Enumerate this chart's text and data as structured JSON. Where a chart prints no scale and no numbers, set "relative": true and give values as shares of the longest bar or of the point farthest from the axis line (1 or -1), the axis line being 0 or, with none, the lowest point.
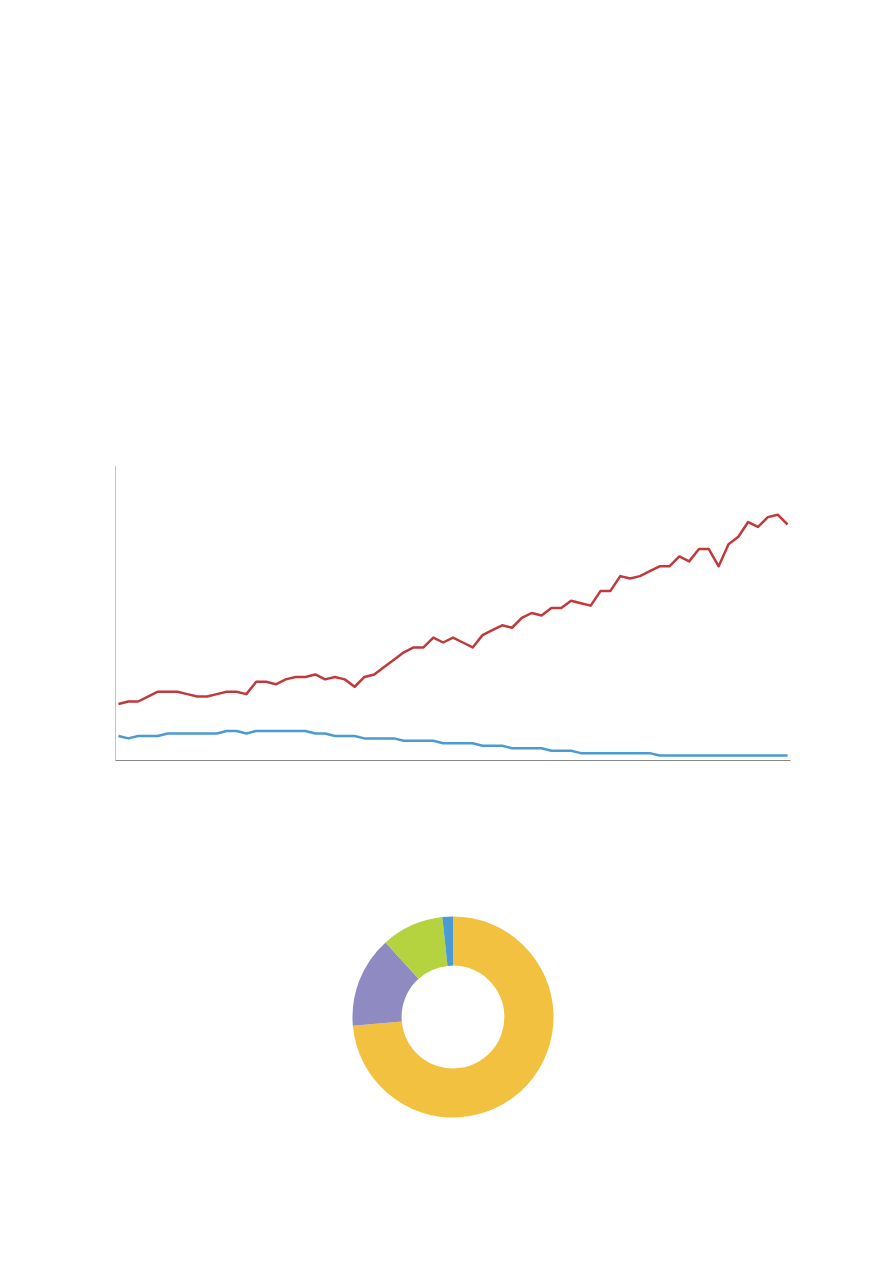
{
  "chart_data": [
    {
      "type": "line",
      "relative": true,
      "categories": [
        null,
        null,
        null,
        null,
        null,
        null,
        null,
        null,
        null,
        null,
        null,
        null,
        null,
        null,
        null,
        null,
        null,
        null,
        null,
        null,
        null,
        null,
        null,
        null,
        null,
        null,
        null,
        null,
        null,
        null,
        null,
        null,
        null,
        null,
        null,
        null,
        null,
        null,
        null,
        null,
        null,
        null,
        null,
        null,
        null,
        null,
        null,
        null,
        null,
        null,
        null,
        null,
        null,
        null,
        null,
        null,
        null,
        null,
        null,
        null,
        null,
        null,
        null,
        null,
        null,
        null,
        null,
        null,
        null
      ],
      "series": [
        {
          "color": "#4a9ad4",
          "values": [
            0.1,
            0.09,
            0.1,
            0.1,
            0.1,
            0.11,
            0.11,
            0.11,
            0.11,
            0.11,
            0.11,
            0.12,
            0.12,
            0.11,
            0.12,
            0.12,
            0.12,
            0.12,
            0.12,
            0.12,
            0.11,
            0.11,
            0.1,
            0.1,
            0.1,
            0.09,
            0.09,
            0.09,
            0.09,
            0.08,
            0.08,
            0.08,
            0.08,
            0.07,
            0.07,
            0.07,
            0.07,
            0.06,
            0.06,
            0.06,
            0.05,
            0.05,
            0.05,
            0.05,
            0.04,
            0.04,
            0.04,
            0.03,
            0.03,
            0.03,
            0.03,
            0.03,
            0.03,
            0.03,
            0.03,
            0.02,
            0.02,
            0.02,
            0.02,
            0.02,
            0.02,
            0.02,
            0.02,
            0.02,
            0.02,
            0.02,
            0.02,
            0.02,
            0.02
          ]
        },
        {
          "color": "#c0393b",
          "values": [
            0.23,
            0.24,
            0.24,
            0.26,
            0.28,
            0.28,
            0.28,
            0.27,
            0.26,
            0.26,
            0.27,
            0.28,
            0.28,
            0.27,
            0.32,
            0.32,
            0.31,
            0.33,
            0.34,
            0.34,
            0.35,
            0.33,
            0.34,
            0.33,
            0.3,
            0.34,
            0.35,
            0.38,
            0.41,
            0.44,
            0.46,
            0.46,
            0.5,
            0.48,
            0.5,
            0.48,
            0.46,
            0.51,
            0.53,
            0.55,
            0.54,
            0.58,
            0.6,
            0.59,
            0.62,
            0.62,
            0.65,
            0.64,
            0.63,
            0.69,
            0.69,
            0.75,
            0.74,
            0.75,
            0.77,
            0.79,
            0.79,
            0.83,
            0.81,
            0.86,
            0.86,
            0.79,
            0.88,
            0.91,
            0.97,
            0.95,
            0.99,
            1.0,
            0.96
          ]
        }
      ]
    },
    {
      "type": "donut",
      "categories": [
        null,
        null,
        null,
        null
      ],
      "values": [
        73.6,
        14.7,
        10.0,
        1.7
      ],
      "colors": [
        "#f3c140",
        "#8f8ac1",
        "#b5d33f",
        "#4a9ad4"
      ]
    }
  ]
}
